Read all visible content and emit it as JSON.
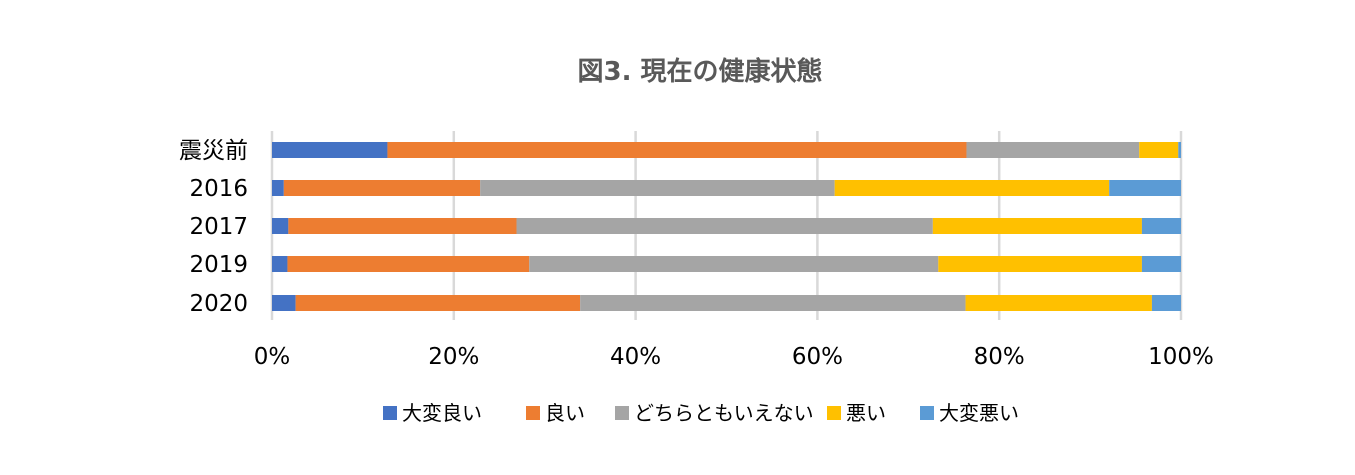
{
  "chart_data": {
    "type": "bar",
    "orientation": "horizontal",
    "stacked": "percent",
    "title": "図3. 現在の健康状態",
    "categories": [
      "震災前",
      "2016",
      "2017",
      "2019",
      "2020"
    ],
    "series": [
      {
        "name": "大変良い",
        "color": "#4472C4",
        "values": [
          12.7,
          1.3,
          1.8,
          1.7,
          2.6
        ]
      },
      {
        "name": "良い",
        "color": "#ED7D31",
        "values": [
          63.7,
          21.6,
          25.1,
          26.6,
          31.3
        ]
      },
      {
        "name": "どちらともいえない",
        "color": "#A5A5A5",
        "values": [
          19.0,
          39.0,
          45.8,
          45.0,
          42.4
        ]
      },
      {
        "name": "悪い",
        "color": "#FFC000",
        "values": [
          4.3,
          30.2,
          23.0,
          22.4,
          20.5
        ]
      },
      {
        "name": "大変悪い",
        "color": "#5B9BD5",
        "values": [
          0.3,
          7.9,
          4.3,
          4.3,
          3.2
        ]
      }
    ],
    "xlim": [
      0,
      100
    ],
    "xticks": [
      "0%",
      "20%",
      "40%",
      "60%",
      "80%",
      "100%"
    ],
    "grid": true,
    "legend": "bottom"
  }
}
